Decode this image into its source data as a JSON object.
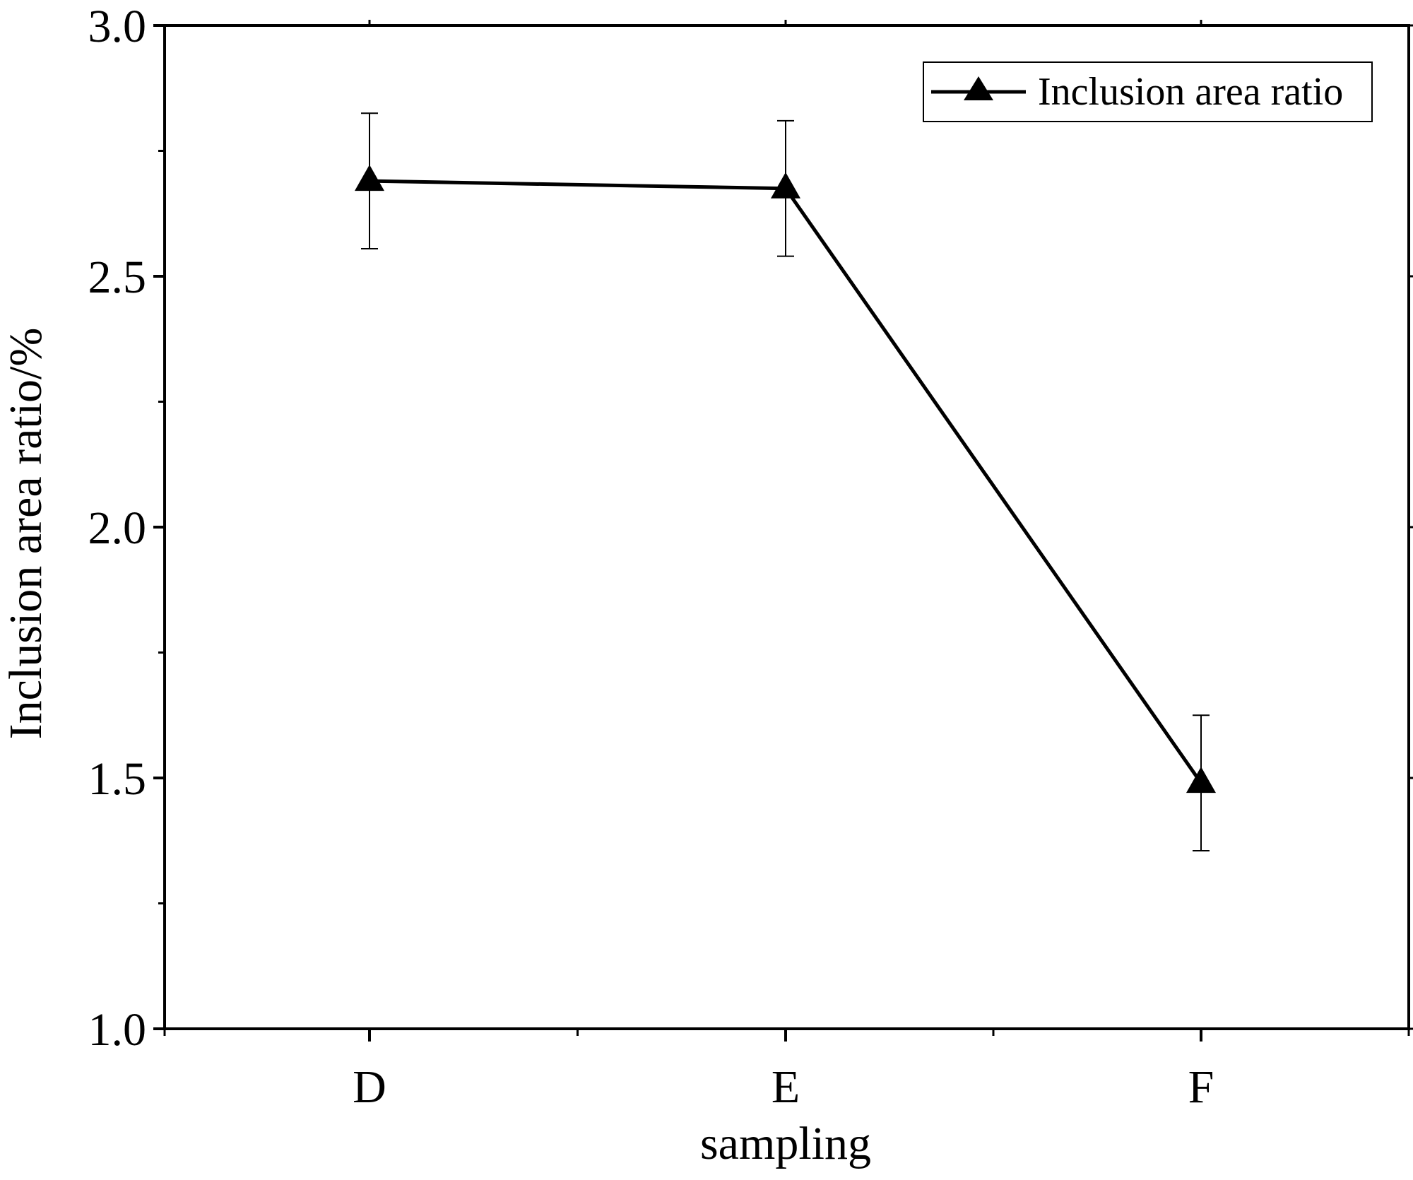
{
  "chart_data": {
    "type": "line",
    "title": "",
    "xlabel": "sampling",
    "ylabel": "Inclusion area ratio/%",
    "categories": [
      "D",
      "E",
      "F"
    ],
    "ylim": [
      1.0,
      3.0
    ],
    "yticks": [
      "1.0",
      "1.5",
      "2.0",
      "2.5",
      "3.0"
    ],
    "y_minor_ticks": [
      1.25,
      1.75,
      2.25,
      2.75
    ],
    "grid": false,
    "legend_position": "top-right",
    "series": [
      {
        "name": "Inclusion area ratio",
        "marker": "triangle",
        "color": "#000000",
        "values": [
          2.69,
          2.675,
          1.49
        ],
        "error": [
          0.135,
          0.135,
          0.135
        ]
      }
    ]
  }
}
